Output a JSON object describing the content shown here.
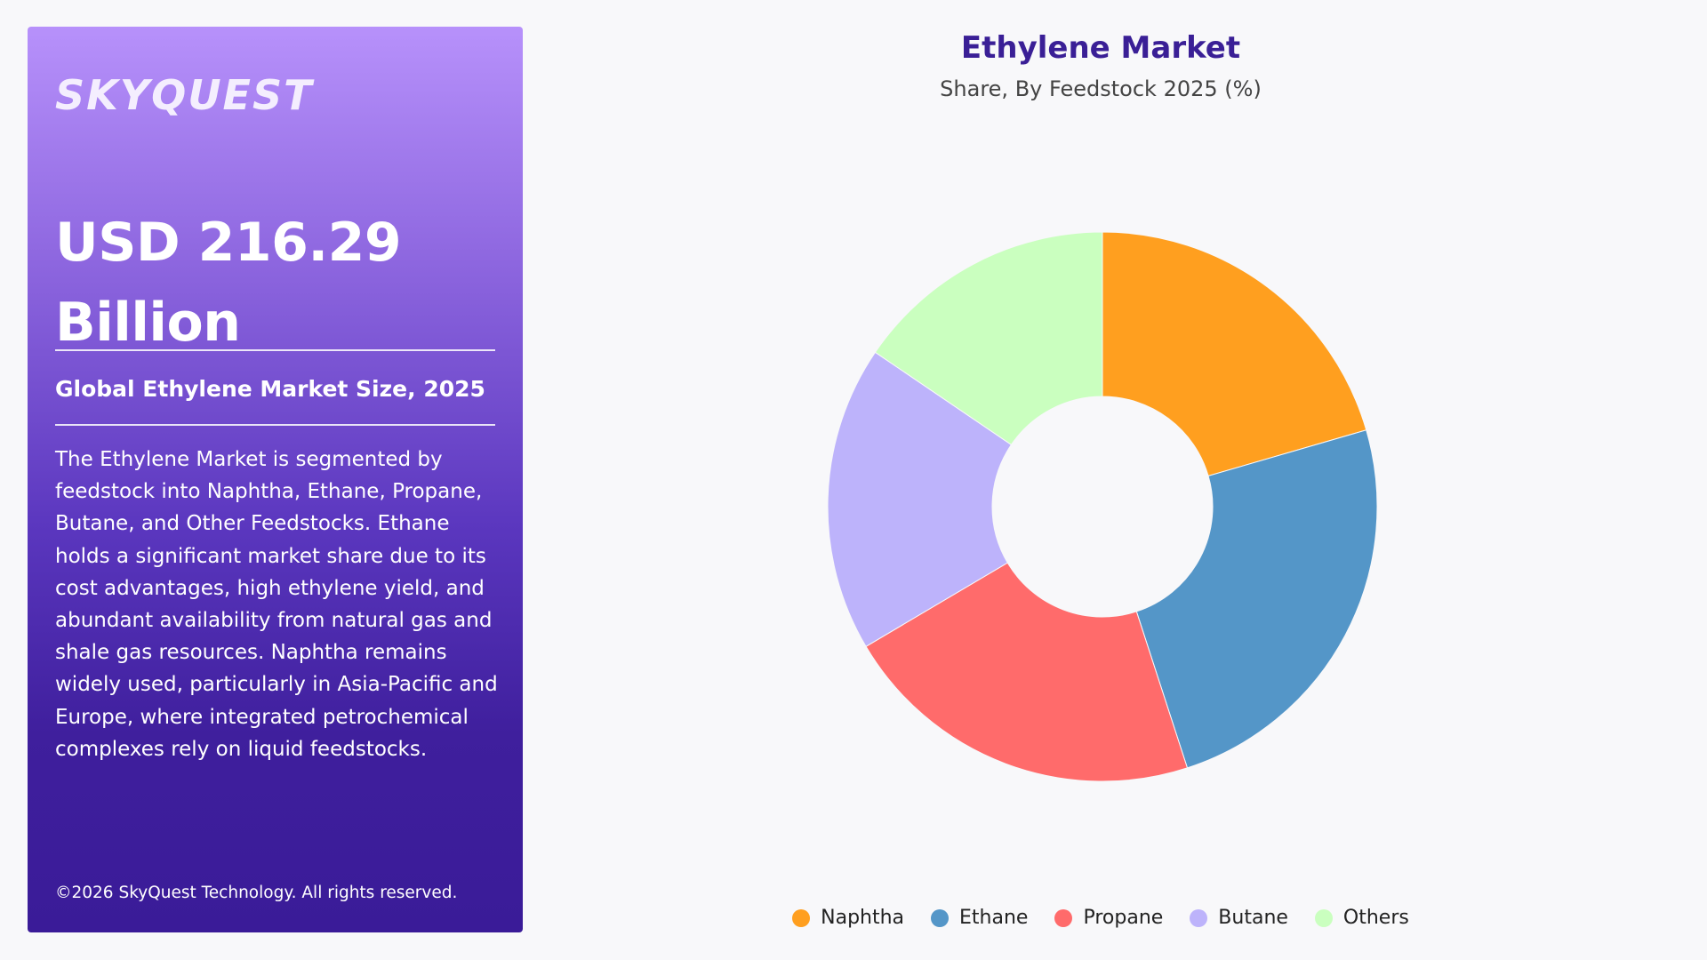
{
  "panel": {
    "logo": "SKYQUEST",
    "headline": "USD 216.29 Billion",
    "subhead": "Global Ethylene Market Size, 2025",
    "description": "The Ethylene Market is segmented by feedstock into Naphtha, Ethane, Propane, Butane, and Other Feedstocks. Ethane holds a significant market share due to its cost advantages, high ethylene yield, and abundant availability from natural gas and shale gas resources. Naphtha remains widely used, particularly in Asia-Pacific and Europe, where integrated petrochemical complexes rely on liquid feedstocks.",
    "copyright": "©2026 SkyQuest Technology. All rights reserved."
  },
  "chart_data": {
    "type": "pie",
    "title": "Ethylene Market",
    "subtitle": "Share, By Feedstock 2025 (%)",
    "categories": [
      "Naphtha",
      "Ethane",
      "Propane",
      "Butane",
      "Others"
    ],
    "values": [
      20.5,
      24.5,
      21.5,
      18.0,
      15.5
    ],
    "colors": [
      "#ff9f1f",
      "#5496c8",
      "#ff6b6b",
      "#bdb3fb",
      "#caffbf"
    ],
    "donut": true,
    "legend_position": "bottom"
  }
}
